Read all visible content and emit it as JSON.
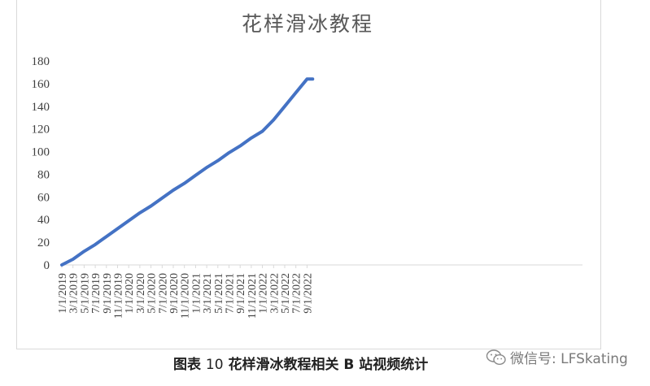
{
  "chart_data": {
    "type": "line",
    "title": "花样滑冰教程",
    "xlabel": "",
    "ylabel": "",
    "ylim": [
      0,
      180
    ],
    "yticks": [
      0,
      20,
      40,
      60,
      80,
      100,
      120,
      140,
      160,
      180
    ],
    "xticks": [
      "1/1/2019",
      "3/1/2019",
      "5/1/2019",
      "7/1/2019",
      "9/1/2019",
      "11/1/2019",
      "1/1/2020",
      "3/1/2020",
      "5/1/2020",
      "7/1/2020",
      "9/1/2020",
      "11/1/2020",
      "1/1/2021",
      "3/1/2021",
      "5/1/2021",
      "7/1/2021",
      "9/1/2021",
      "11/1/2021",
      "1/1/2022",
      "3/1/2022",
      "5/1/2022",
      "7/1/2022",
      "9/1/2022"
    ],
    "grid": false,
    "legend": "none",
    "color": "#4472c4",
    "series": [
      {
        "x": [
          "1/1/2019",
          "3/1/2019",
          "5/1/2019",
          "7/1/2019",
          "9/1/2019",
          "11/1/2019",
          "1/1/2020",
          "3/1/2020",
          "5/1/2020",
          "7/1/2020",
          "9/1/2020",
          "11/1/2020",
          "1/1/2021",
          "3/1/2021",
          "5/1/2021",
          "7/1/2021",
          "9/1/2021",
          "11/1/2021",
          "1/1/2022",
          "3/1/2022",
          "5/1/2022",
          "7/1/2022",
          "9/1/2022",
          "10/1/2022"
        ],
        "values": [
          0,
          5,
          12,
          18,
          25,
          32,
          39,
          46,
          52,
          59,
          66,
          72,
          79,
          86,
          92,
          99,
          105,
          112,
          118,
          128,
          140,
          152,
          164,
          164
        ]
      }
    ]
  },
  "caption": {
    "prefix": "图表",
    "number": "10",
    "text": "花样滑冰教程相关 B 站视频统计"
  },
  "watermark": {
    "text": "微信号: LFSkating",
    "icon": "wechat-icon"
  }
}
